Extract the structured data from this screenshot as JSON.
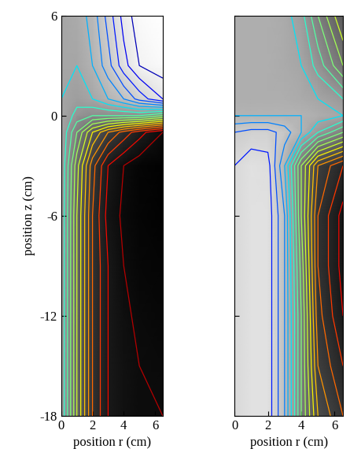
{
  "chart_data": [
    {
      "type": "contour",
      "x_label": "position r (cm)",
      "y_label": "position z (cm)",
      "xlim": [
        0,
        6.5
      ],
      "ylim": [
        -18,
        6
      ],
      "xticks": [
        0,
        2,
        4,
        6
      ],
      "yticks": [
        -18,
        -12,
        -6,
        0,
        6
      ],
      "r": [
        0,
        1,
        2,
        3,
        4,
        5,
        6.5
      ],
      "z": [
        -18,
        -15,
        -12,
        -9,
        -6,
        -3,
        -1,
        0,
        1,
        3,
        6
      ],
      "cells": [
        [
          0.35,
          0.6,
          0.8,
          0.9,
          0.93,
          0.95,
          0.95
        ],
        [
          0.35,
          0.6,
          0.8,
          0.9,
          0.93,
          0.95,
          0.96
        ],
        [
          0.35,
          0.6,
          0.8,
          0.9,
          0.94,
          0.96,
          0.97
        ],
        [
          0.35,
          0.6,
          0.8,
          0.9,
          0.95,
          0.97,
          0.98
        ],
        [
          0.35,
          0.6,
          0.8,
          0.92,
          0.96,
          0.98,
          0.99
        ],
        [
          0.35,
          0.58,
          0.78,
          0.9,
          0.95,
          0.98,
          0.99
        ],
        [
          0.35,
          0.5,
          0.65,
          0.75,
          0.82,
          0.88,
          0.95
        ],
        [
          0.35,
          0.42,
          0.45,
          0.45,
          0.45,
          0.45,
          0.5
        ],
        [
          0.35,
          0.38,
          0.35,
          0.3,
          0.25,
          0.18,
          0.1
        ],
        [
          0.35,
          0.35,
          0.3,
          0.22,
          0.12,
          0.05,
          0.02
        ],
        [
          0.35,
          0.33,
          0.28,
          0.18,
          0.08,
          0.02,
          0.0
        ]
      ],
      "levels": [
        0.05,
        0.1,
        0.15,
        0.2,
        0.25,
        0.3,
        0.35,
        0.4,
        0.45,
        0.5,
        0.55,
        0.6,
        0.65,
        0.7,
        0.75,
        0.8,
        0.85,
        0.9,
        0.95
      ],
      "color_range": [
        0,
        1
      ]
    },
    {
      "type": "contour",
      "x_label": "position r (cm)",
      "tick_labels": "x",
      "xlim": [
        0,
        6.5
      ],
      "ylim": [
        -18,
        6
      ],
      "xticks": [
        0,
        2,
        4,
        6
      ],
      "yticks": [
        -18,
        -12,
        -6,
        0,
        6
      ],
      "r": [
        0,
        1,
        2,
        3,
        4,
        5,
        6.5
      ],
      "z": [
        -18,
        -15,
        -12,
        -9,
        -6,
        -3,
        -1,
        0,
        1,
        3,
        6
      ],
      "cells": [
        [
          0.15,
          0.12,
          0.12,
          0.25,
          0.5,
          0.7,
          0.8
        ],
        [
          0.15,
          0.12,
          0.12,
          0.25,
          0.5,
          0.75,
          0.85
        ],
        [
          0.15,
          0.12,
          0.12,
          0.25,
          0.5,
          0.78,
          0.9
        ],
        [
          0.15,
          0.12,
          0.12,
          0.25,
          0.52,
          0.8,
          0.92
        ],
        [
          0.15,
          0.12,
          0.12,
          0.25,
          0.55,
          0.8,
          0.92
        ],
        [
          0.15,
          0.12,
          0.13,
          0.3,
          0.55,
          0.75,
          0.85
        ],
        [
          0.2,
          0.18,
          0.18,
          0.22,
          0.3,
          0.4,
          0.5
        ],
        [
          0.3,
          0.3,
          0.3,
          0.3,
          0.3,
          0.32,
          0.35
        ],
        [
          0.32,
          0.32,
          0.32,
          0.32,
          0.33,
          0.35,
          0.4
        ],
        [
          0.32,
          0.32,
          0.32,
          0.33,
          0.35,
          0.42,
          0.55
        ],
        [
          0.32,
          0.32,
          0.32,
          0.33,
          0.38,
          0.5,
          0.65
        ]
      ],
      "levels": [
        0.05,
        0.1,
        0.15,
        0.2,
        0.25,
        0.3,
        0.35,
        0.4,
        0.45,
        0.5,
        0.55,
        0.6,
        0.65,
        0.7,
        0.75,
        0.8,
        0.85,
        0.9,
        0.95
      ],
      "color_range": [
        0,
        1
      ]
    }
  ]
}
